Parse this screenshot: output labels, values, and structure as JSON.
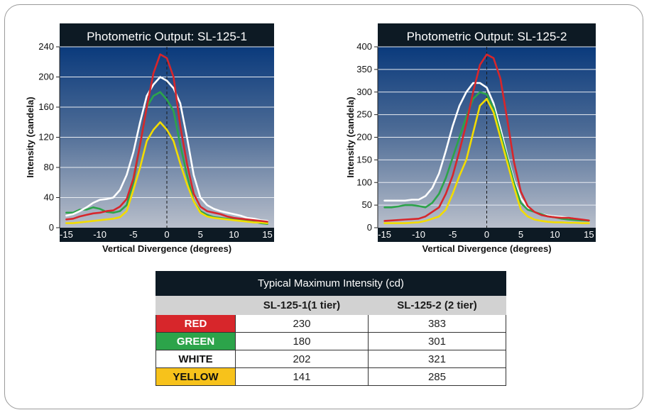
{
  "chart_data": [
    {
      "type": "line",
      "title": "Photometric Output: SL-125-1",
      "xlabel": "Vertical Divergence (degrees)",
      "ylabel": "Intensity (candela)",
      "xlim": [
        -16,
        16
      ],
      "ylim": [
        0,
        240
      ],
      "xticks": [
        -15,
        -10,
        -5,
        0,
        5,
        10,
        15
      ],
      "yticks": [
        0,
        40,
        80,
        120,
        160,
        200,
        240
      ],
      "x": [
        -15,
        -14,
        -13,
        -12,
        -11,
        -10,
        -9,
        -8,
        -7,
        -6,
        -5,
        -4,
        -3,
        -2,
        -1,
        0,
        1,
        2,
        3,
        4,
        5,
        6,
        7,
        8,
        9,
        10,
        11,
        12,
        13,
        14,
        15
      ],
      "series": [
        {
          "name": "GREEN",
          "color": "#2ca44a",
          "values": [
            20,
            20,
            24,
            24,
            27,
            25,
            21,
            20,
            22,
            30,
            60,
            110,
            160,
            175,
            180,
            170,
            155,
            110,
            70,
            35,
            22,
            17,
            14,
            13,
            12,
            11,
            10,
            10,
            8,
            6,
            5
          ]
        },
        {
          "name": "WHITE",
          "color": "#ffffff",
          "values": [
            16,
            18,
            22,
            27,
            33,
            37,
            38,
            40,
            50,
            70,
            100,
            140,
            175,
            190,
            200,
            195,
            185,
            165,
            120,
            70,
            40,
            30,
            25,
            22,
            20,
            18,
            16,
            13,
            12,
            10,
            9
          ]
        },
        {
          "name": "YELLOW",
          "color": "#f2dc00",
          "values": [
            6,
            6,
            7,
            8,
            9,
            10,
            11,
            12,
            14,
            22,
            50,
            80,
            115,
            130,
            140,
            130,
            115,
            85,
            58,
            35,
            20,
            15,
            13,
            12,
            11,
            10,
            9,
            8,
            7,
            7,
            6
          ]
        },
        {
          "name": "RED",
          "color": "#d7262b",
          "values": [
            11,
            12,
            15,
            17,
            19,
            20,
            22,
            23,
            28,
            38,
            65,
            110,
            160,
            205,
            230,
            225,
            200,
            135,
            85,
            45,
            28,
            22,
            20,
            18,
            15,
            13,
            12,
            11,
            10,
            9,
            8
          ]
        }
      ]
    },
    {
      "type": "line",
      "title": "Photometric Output: SL-125-2",
      "xlabel": "Vertical Divergence (degrees)",
      "ylabel": "Intensity (candela)",
      "xlim": [
        -16,
        16
      ],
      "ylim": [
        0,
        400
      ],
      "xticks": [
        -15,
        -10,
        -5,
        0,
        5,
        10,
        15
      ],
      "yticks": [
        0,
        50,
        100,
        150,
        200,
        250,
        300,
        350,
        400
      ],
      "x": [
        -15,
        -14,
        -13,
        -12,
        -11,
        -10,
        -9,
        -8,
        -7,
        -6,
        -5,
        -4,
        -3,
        -2,
        -1,
        0,
        1,
        2,
        3,
        4,
        5,
        6,
        7,
        8,
        9,
        10,
        11,
        12,
        13,
        14,
        15
      ],
      "series": [
        {
          "name": "WHITE",
          "color": "#ffffff",
          "values": [
            60,
            60,
            60,
            60,
            62,
            62,
            70,
            88,
            120,
            170,
            225,
            270,
            300,
            320,
            320,
            310,
            275,
            220,
            160,
            105,
            65,
            45,
            35,
            30,
            27,
            25,
            24,
            22,
            20,
            16,
            14
          ]
        },
        {
          "name": "GREEN",
          "color": "#2ca44a",
          "values": [
            45,
            45,
            47,
            50,
            50,
            48,
            45,
            55,
            75,
            110,
            155,
            200,
            245,
            285,
            300,
            295,
            265,
            210,
            155,
            100,
            55,
            40,
            35,
            30,
            25,
            23,
            20,
            18,
            17,
            16,
            15
          ]
        },
        {
          "name": "YELLOW",
          "color": "#f2dc00",
          "values": [
            10,
            10,
            10,
            10,
            11,
            12,
            15,
            20,
            25,
            40,
            75,
            115,
            150,
            210,
            270,
            285,
            255,
            200,
            145,
            90,
            40,
            25,
            18,
            15,
            13,
            12,
            12,
            11,
            11,
            10,
            10
          ]
        },
        {
          "name": "RED",
          "color": "#d7262b",
          "values": [
            15,
            16,
            17,
            18,
            19,
            20,
            25,
            35,
            45,
            75,
            115,
            170,
            230,
            300,
            360,
            383,
            375,
            330,
            240,
            145,
            80,
            48,
            35,
            28,
            25,
            23,
            22,
            22,
            20,
            18,
            16
          ]
        }
      ]
    },
    {
      "type": "table",
      "title": "Typical Maximum Intensity (cd)",
      "columns": [
        "",
        "SL-125-1(1 tier)",
        "SL-125-2 (2 tier)"
      ],
      "rows": [
        {
          "label": "RED",
          "color": "#d7262b",
          "text_color": "#ffffff",
          "values": [
            "230",
            "383"
          ]
        },
        {
          "label": "GREEN",
          "color": "#2ca44a",
          "text_color": "#ffffff",
          "values": [
            "180",
            "301"
          ]
        },
        {
          "label": "WHITE",
          "color": "#ffffff",
          "text_color": "#111111",
          "values": [
            "202",
            "321"
          ]
        },
        {
          "label": "YELLOW",
          "color": "#f7c21b",
          "text_color": "#111111",
          "values": [
            "141",
            "285"
          ]
        }
      ]
    }
  ]
}
